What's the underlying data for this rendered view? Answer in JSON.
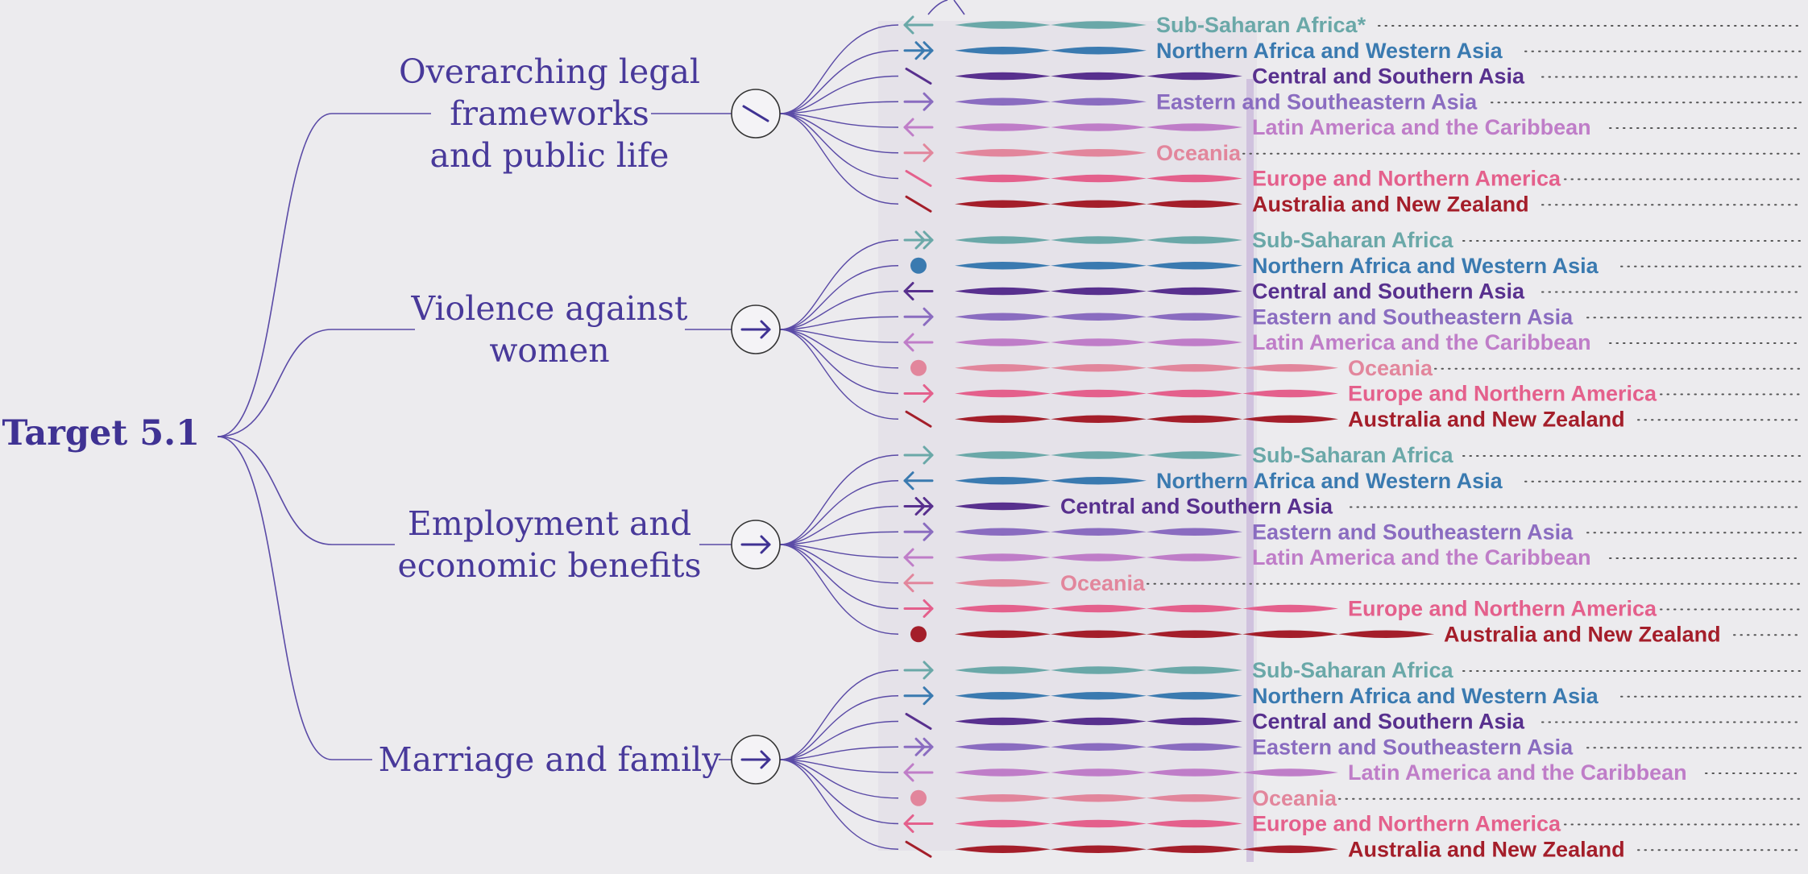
{
  "target": {
    "label": "Target 5.1"
  },
  "colors": {
    "line": "#5a4aa6",
    "band": "#e4e0e8",
    "bar": "#c8b7da",
    "regions": {
      "Sub-Saharan Africa": "#6aa8a8",
      "Northern Africa and Western Asia": "#3a7ab0",
      "Central and Southern Asia": "#58308e",
      "Eastern and Southeastern Asia": "#8a6cc0",
      "Latin America and the Caribbean": "#bf7dc8",
      "Oceania": "#e2869c",
      "Europe and Northern America": "#e4608c",
      "Australia and New Zealand": "#a41e2a"
    }
  },
  "categories": [
    {
      "id": "legal",
      "label_lines": [
        "Overarching legal",
        "frameworks",
        "and public life"
      ],
      "summary_icon": "slash-icon",
      "regions": [
        {
          "name": "Sub-Saharan Africa",
          "label": "Sub-Saharan Africa*",
          "icon": "arrow-left-icon",
          "score": 2
        },
        {
          "name": "Northern Africa and Western Asia",
          "label": "Northern Africa and Western Asia",
          "icon": "double-arrow-right-icon",
          "score": 2
        },
        {
          "name": "Central and Southern Asia",
          "label": "Central and Southern Asia",
          "icon": "slash-icon",
          "score": 3
        },
        {
          "name": "Eastern and Southeastern Asia",
          "label": "Eastern and Southeastern Asia",
          "icon": "arrow-right-icon",
          "score": 2
        },
        {
          "name": "Latin America and the Caribbean",
          "label": "Latin America and the Caribbean",
          "icon": "arrow-left-icon",
          "score": 3
        },
        {
          "name": "Oceania",
          "label": "Oceania",
          "icon": "arrow-right-icon",
          "score": 2
        },
        {
          "name": "Europe and Northern America",
          "label": "Europe and Northern America",
          "icon": "slash-icon",
          "score": 3
        },
        {
          "name": "Australia and New Zealand",
          "label": "Australia and New Zealand",
          "icon": "slash-icon",
          "score": 3
        }
      ]
    },
    {
      "id": "violence",
      "label_lines": [
        "Violence against",
        "women"
      ],
      "summary_icon": "arrow-right-icon",
      "regions": [
        {
          "name": "Sub-Saharan Africa",
          "label": "Sub-Saharan Africa",
          "icon": "double-arrow-right-icon",
          "score": 3
        },
        {
          "name": "Northern Africa and Western Asia",
          "label": "Northern Africa and Western Asia",
          "icon": "dot-icon",
          "score": 3
        },
        {
          "name": "Central and Southern Asia",
          "label": "Central and Southern Asia",
          "icon": "arrow-left-icon",
          "score": 3
        },
        {
          "name": "Eastern and Southeastern Asia",
          "label": "Eastern and Southeastern Asia",
          "icon": "arrow-right-icon",
          "score": 3
        },
        {
          "name": "Latin America and the Caribbean",
          "label": "Latin America and the Caribbean",
          "icon": "arrow-left-icon",
          "score": 3
        },
        {
          "name": "Oceania",
          "label": "Oceania",
          "icon": "dot-icon",
          "score": 4
        },
        {
          "name": "Europe and Northern America",
          "label": "Europe and Northern America",
          "icon": "arrow-right-icon",
          "score": 4
        },
        {
          "name": "Australia and New Zealand",
          "label": "Australia and New Zealand",
          "icon": "slash-icon",
          "score": 4
        }
      ]
    },
    {
      "id": "employment",
      "label_lines": [
        "Employment and",
        "economic benefits"
      ],
      "summary_icon": "arrow-right-icon",
      "regions": [
        {
          "name": "Sub-Saharan Africa",
          "label": "Sub-Saharan Africa",
          "icon": "arrow-right-icon",
          "score": 3
        },
        {
          "name": "Northern Africa and Western Asia",
          "label": "Northern Africa and Western Asia",
          "icon": "arrow-left-icon",
          "score": 2
        },
        {
          "name": "Central and Southern Asia",
          "label": "Central and Southern Asia",
          "icon": "double-arrow-right-icon",
          "score": 1
        },
        {
          "name": "Eastern and Southeastern Asia",
          "label": "Eastern and Southeastern Asia",
          "icon": "arrow-right-icon",
          "score": 3
        },
        {
          "name": "Latin America and the Caribbean",
          "label": "Latin America and the Caribbean",
          "icon": "arrow-left-icon",
          "score": 3
        },
        {
          "name": "Oceania",
          "label": "Oceania",
          "icon": "arrow-left-icon",
          "score": 1
        },
        {
          "name": "Europe and Northern America",
          "label": "Europe and Northern America",
          "icon": "arrow-right-icon",
          "score": 4
        },
        {
          "name": "Australia and New Zealand",
          "label": "Australia and New Zealand",
          "icon": "dot-icon",
          "score": 5
        }
      ]
    },
    {
      "id": "marriage",
      "label_lines": [
        "Marriage and family"
      ],
      "summary_icon": "arrow-right-icon",
      "regions": [
        {
          "name": "Sub-Saharan Africa",
          "label": "Sub-Saharan Africa",
          "icon": "arrow-right-icon",
          "score": 3
        },
        {
          "name": "Northern Africa and Western Asia",
          "label": "Northern Africa and Western Asia",
          "icon": "arrow-right-icon",
          "score": 3
        },
        {
          "name": "Central and Southern Asia",
          "label": "Central and Southern Asia",
          "icon": "slash-icon",
          "score": 3
        },
        {
          "name": "Eastern and Southeastern Asia",
          "label": "Eastern and Southeastern Asia",
          "icon": "double-arrow-right-icon",
          "score": 3
        },
        {
          "name": "Latin America and the Caribbean",
          "label": "Latin America and the Caribbean",
          "icon": "arrow-left-icon",
          "score": 4
        },
        {
          "name": "Oceania",
          "label": "Oceania",
          "icon": "dot-icon",
          "score": 3
        },
        {
          "name": "Europe and Northern America",
          "label": "Europe and Northern America",
          "icon": "arrow-left-icon",
          "score": 3
        },
        {
          "name": "Australia and New Zealand",
          "label": "Australia and New Zealand",
          "icon": "slash-icon",
          "score": 4
        }
      ]
    }
  ]
}
